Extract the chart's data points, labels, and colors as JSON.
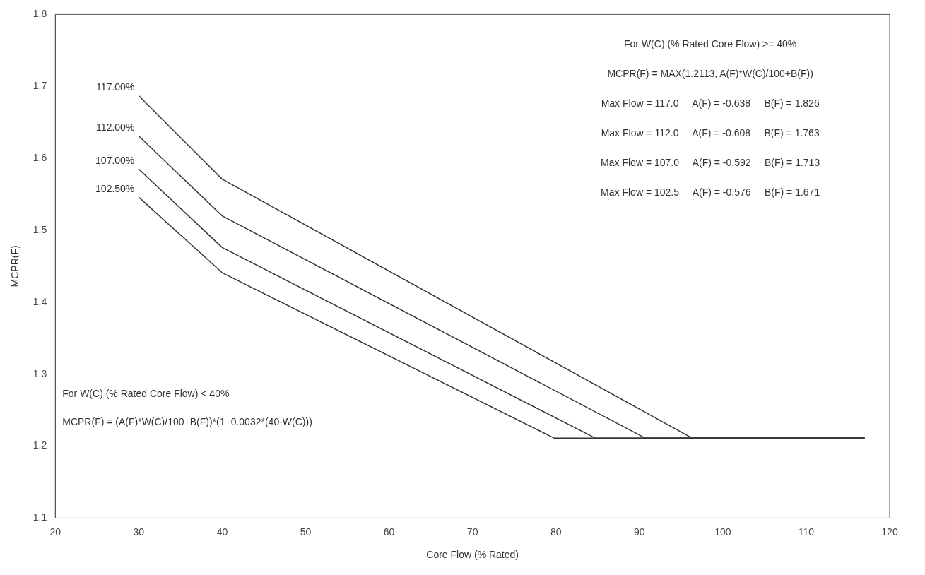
{
  "chart_data": {
    "type": "line",
    "xlabel": "Core Flow (% Rated)",
    "ylabel": "MCPR(F)",
    "xlim": [
      20,
      120
    ],
    "xticks": [
      20,
      30,
      40,
      50,
      60,
      70,
      80,
      90,
      100,
      110,
      120
    ],
    "ylim": [
      1.1,
      1.8
    ],
    "yticks": [
      {
        "value": 1.1,
        "label": "1.1"
      },
      {
        "value": 1.2,
        "label": "1.2"
      },
      {
        "value": 1.3,
        "label": "1.3"
      },
      {
        "value": 1.4,
        "label": "1.4"
      },
      {
        "value": 1.5,
        "label": "1.5"
      },
      {
        "value": 1.6,
        "label": "1.6"
      },
      {
        "value": 1.7,
        "label": "1.7"
      },
      {
        "value": 1.8,
        "label": "1.8"
      }
    ],
    "grid": false,
    "legend": false,
    "marker": "none",
    "line_style": "solid",
    "series": [
      {
        "name": "117.00%",
        "color": "#333333",
        "x": [
          30,
          40,
          96.35,
          117
        ],
        "values": [
          1.687,
          1.571,
          1.211,
          1.211
        ]
      },
      {
        "name": "112.00%",
        "color": "#333333",
        "x": [
          30,
          40,
          90.74,
          117
        ],
        "values": [
          1.631,
          1.52,
          1.211,
          1.211
        ]
      },
      {
        "name": "107.00%",
        "color": "#333333",
        "x": [
          30,
          40,
          84.75,
          117
        ],
        "values": [
          1.585,
          1.476,
          1.211,
          1.211
        ]
      },
      {
        "name": "102.50%",
        "color": "#333333",
        "x": [
          30,
          40,
          79.81,
          117
        ],
        "values": [
          1.546,
          1.441,
          1.211,
          1.211
        ]
      }
    ],
    "annotations": [
      "For W(C) (% Rated Core Flow) >= 40%",
      "MCPR(F) = MAX(1.2113, A(F)*W(C)/100+B(F))",
      "Max Flow = 117.0     A(F) = -0.638     B(F) = 1.826",
      "Max Flow = 112.0     A(F) = -0.608     B(F) = 1.763",
      "Max Flow = 107.0     A(F) = -0.592     B(F) = 1.713",
      "Max Flow = 102.5     A(F) = -0.576     B(F) = 1.671",
      "For W(C) (% Rated Core Flow) < 40%",
      "MCPR(F) = (A(F)*W(C)/100+B(F))*(1+0.0032*(40-W(C)))"
    ]
  }
}
